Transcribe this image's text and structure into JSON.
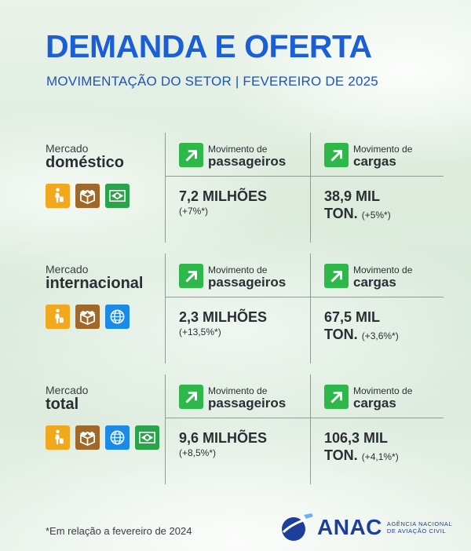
{
  "header": {
    "title": "DEMANDA E OFERTA",
    "subtitle": "MOVIMENTAÇÃO DO SETOR | FEVEREIRO DE 2025"
  },
  "colors": {
    "title_blue": "#1a5fd6",
    "arrow_green": "#2fb84a",
    "passenger_icon_orange": "#f2a81c",
    "cargo_icon_brown": "#a0692a",
    "globe_icon_blue": "#1c8be8",
    "flag_icon_green": "#2aa44a"
  },
  "sections": [
    {
      "market_sup": "Mercado",
      "market_main": "doméstico",
      "icons": [
        "passenger-icon",
        "cargo-box-icon",
        "brazil-flag-icon"
      ],
      "passengers": {
        "label_sup": "Movimento de",
        "label_main": "passageiros",
        "value": "7,2 MILHÕES",
        "change": "(+7%*)"
      },
      "cargo": {
        "label_sup": "Movimento de",
        "label_main": "cargas",
        "value": "38,9 MIL",
        "unit": "TON.",
        "change": "(+5%*)"
      }
    },
    {
      "market_sup": "Mercado",
      "market_main": "internacional",
      "icons": [
        "passenger-icon",
        "cargo-box-icon",
        "globe-icon"
      ],
      "passengers": {
        "label_sup": "Movimento de",
        "label_main": "passageiros",
        "value": "2,3 MILHÕES",
        "change": "(+13,5%*)"
      },
      "cargo": {
        "label_sup": "Movimento de",
        "label_main": "cargas",
        "value": "67,5 MIL",
        "unit": "TON.",
        "change": "(+3,6%*)"
      }
    },
    {
      "market_sup": "Mercado",
      "market_main": "total",
      "icons": [
        "passenger-icon",
        "cargo-box-icon",
        "globe-icon",
        "brazil-flag-icon"
      ],
      "passengers": {
        "label_sup": "Movimento de",
        "label_main": "passageiros",
        "value": "9,6 MILHÕES",
        "change": "(+8,5%*)"
      },
      "cargo": {
        "label_sup": "Movimento de",
        "label_main": "cargas",
        "value": "106,3 MIL",
        "unit": "TON.",
        "change": "(+4,1%*)"
      }
    }
  ],
  "footer": {
    "footnote": "*Em relação a fevereiro de 2024",
    "logo_name": "ANAC",
    "logo_sub_line1": "AGÊNCIA NACIONAL",
    "logo_sub_line2": "DE AVIAÇÃO CIVIL"
  }
}
